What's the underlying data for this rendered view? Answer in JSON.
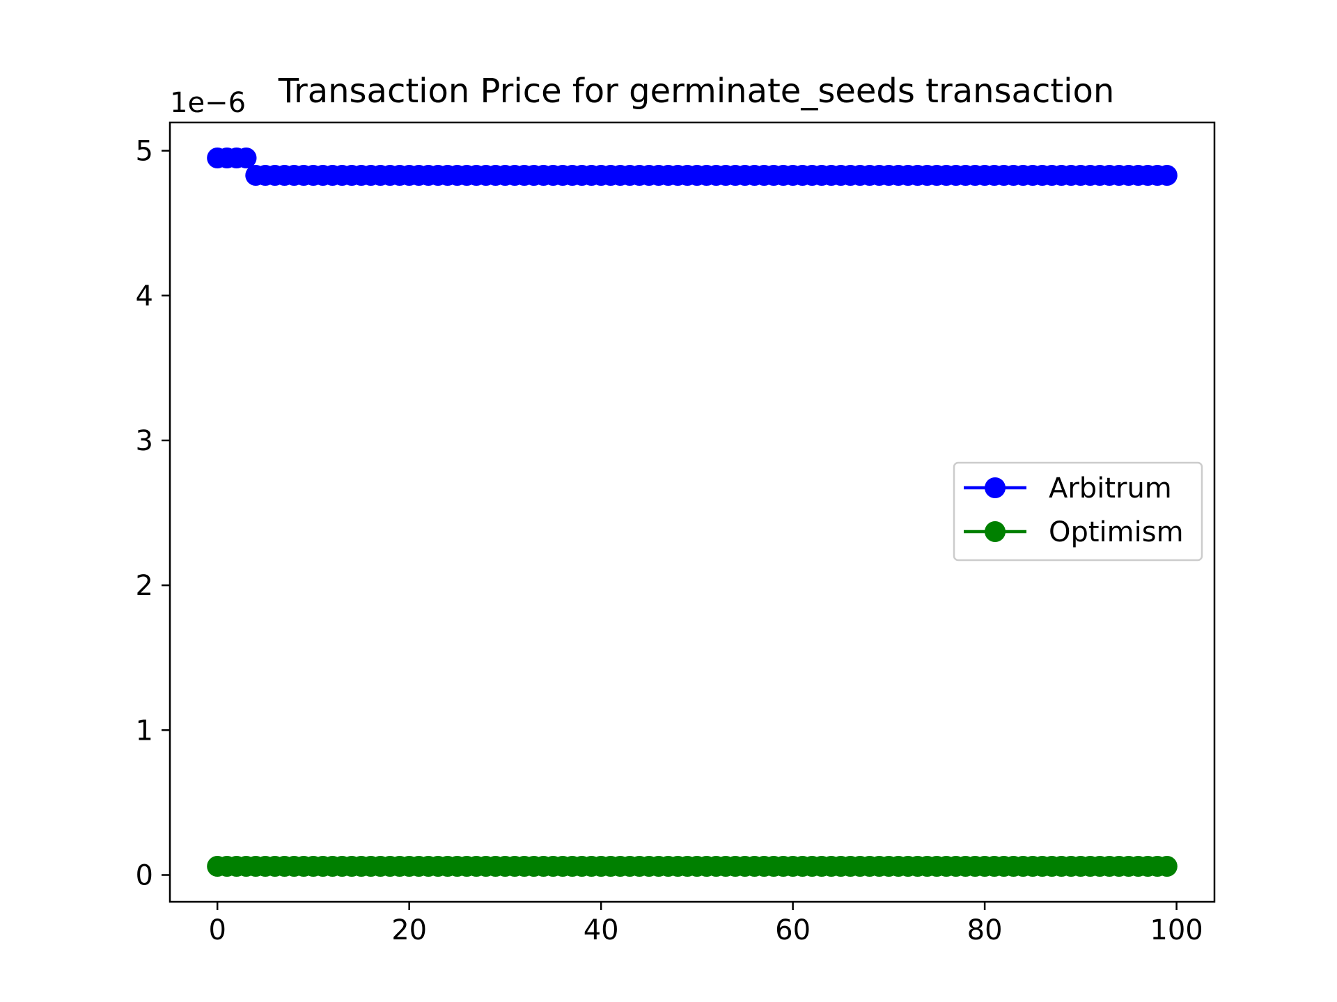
{
  "chart_data": {
    "type": "line",
    "title": "Transaction Price for germinate_seeds transaction",
    "xlabel": "",
    "ylabel": "",
    "y_offset_label": "1e−6",
    "xlim": [
      -4.95,
      103.95
    ],
    "ylim": [
      -0.185,
      5.195
    ],
    "x_ticks": [
      0,
      20,
      40,
      60,
      80,
      100
    ],
    "x_tick_labels": [
      "0",
      "20",
      "40",
      "60",
      "80",
      "100"
    ],
    "y_ticks": [
      0,
      1,
      2,
      3,
      4,
      5
    ],
    "y_tick_labels": [
      "0",
      "1",
      "2",
      "3",
      "4",
      "5"
    ],
    "y_scale_multiplier": 1e-06,
    "grid": false,
    "legend_placement": "center-right",
    "series": [
      {
        "name": "Arbitrum",
        "color": "#0000ff",
        "marker": "circle",
        "x_start": 0,
        "x_end": 99,
        "segments": [
          {
            "from_x": 0,
            "to_x": 3,
            "y": 4.95
          },
          {
            "from_x": 4,
            "to_x": 99,
            "y": 4.83
          }
        ]
      },
      {
        "name": "Optimism",
        "color": "#008000",
        "marker": "circle",
        "x_start": 0,
        "x_end": 99,
        "segments": [
          {
            "from_x": 0,
            "to_x": 99,
            "y": 0.06
          }
        ]
      }
    ]
  }
}
